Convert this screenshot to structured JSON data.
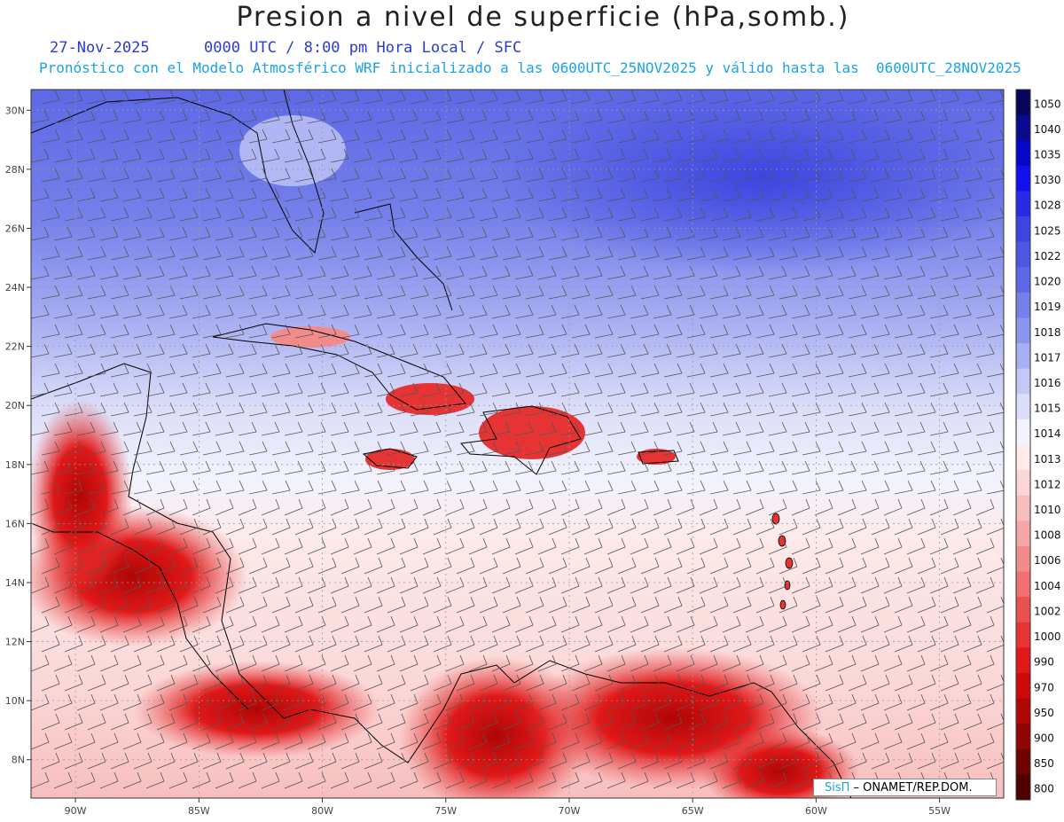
{
  "header": {
    "title": "Presion a nivel de superficie (hPa,somb.)",
    "date": "27-Nov-2025",
    "time_info": "0000 UTC / 8:00 pm Hora Local / SFC",
    "forecast_info": "Pronóstico con el Modelo Atmosférico WRF inicializado a las 0600UTC_25NOV2025 y válido hasta las  0600UTC_28NOV2025"
  },
  "map": {
    "lat_labels": [
      "30N",
      "28N",
      "26N",
      "24N",
      "22N",
      "20N",
      "18N",
      "16N",
      "14N",
      "12N",
      "10N",
      "8N"
    ],
    "lon_labels": [
      "90W",
      "85W",
      "80W",
      "75W",
      "70W",
      "65W",
      "60W",
      "55W"
    ],
    "lat_values": [
      30,
      28,
      26,
      24,
      22,
      20,
      18,
      16,
      14,
      12,
      10,
      8
    ],
    "lon_values": [
      -90,
      -85,
      -80,
      -75,
      -70,
      -65,
      -60,
      -55
    ],
    "lat_range": [
      6.7,
      30.7
    ],
    "lon_range": [
      -91.8,
      -52.4
    ]
  },
  "colorbar": {
    "levels": [
      "1050",
      "1040",
      "1035",
      "1030",
      "1028",
      "1025",
      "1022",
      "1020",
      "1019",
      "1018",
      "1017",
      "1016",
      "1015",
      "1014",
      "1013",
      "1012",
      "1010",
      "1008",
      "1006",
      "1004",
      "1002",
      "1000",
      "990",
      "970",
      "950",
      "900",
      "850",
      "800"
    ],
    "colors": [
      "#06065a",
      "#0a0a8c",
      "#0606c8",
      "#1010ee",
      "#2a2ae6",
      "#3c45e0",
      "#4c57e4",
      "#5e68e6",
      "#7580ea",
      "#8c96ee",
      "#a8aff2",
      "#c3c8f6",
      "#dcdef9",
      "#f2f3fd",
      "#fdeaea",
      "#fbd6d6",
      "#f8bebe",
      "#f5a6a6",
      "#f28c8c",
      "#ee7070",
      "#ea5252",
      "#e63434",
      "#e01818",
      "#cc0a0a",
      "#b00606",
      "#900404",
      "#700202",
      "#4e0000"
    ]
  },
  "credit": {
    "brand": "SisΠ",
    "text": " – ONAMET/REP.DOM."
  }
}
